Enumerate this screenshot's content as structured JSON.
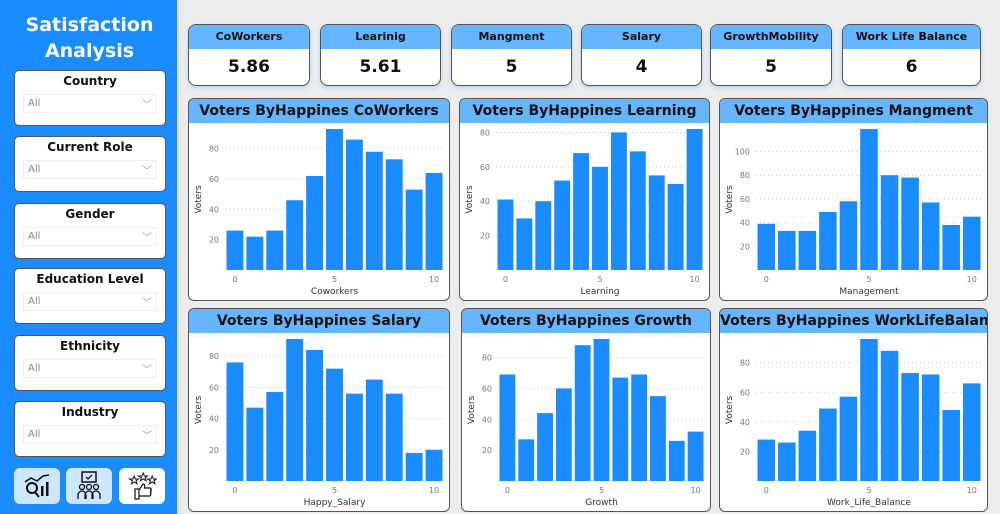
{
  "sidebar": {
    "title": "Satisfaction Analysis",
    "filters": [
      {
        "label": "Country",
        "value": "All"
      },
      {
        "label": "Current Role",
        "value": "All"
      },
      {
        "label": "Gender",
        "value": "All"
      },
      {
        "label": "Education Level",
        "value": "All"
      },
      {
        "label": "Ethnicity",
        "value": "All"
      },
      {
        "label": "Industry",
        "value": "All"
      }
    ],
    "nav_icons": [
      "analytics-search-icon",
      "presentation-audience-icon",
      "thumbs-up-stars-icon"
    ]
  },
  "kpis": [
    {
      "label": "CoWorkers",
      "value": "5.86"
    },
    {
      "label": "Learinig",
      "value": "5.61"
    },
    {
      "label": "Mangment",
      "value": "5"
    },
    {
      "label": "Salary",
      "value": "4"
    },
    {
      "label": "GrowthMobility",
      "value": "5"
    },
    {
      "label": "Work Life Balance",
      "value": "6"
    }
  ],
  "colors": {
    "bar": "#1a8cff",
    "header": "#66b5ff",
    "sidebar": "#1a8cff"
  },
  "chart_data": [
    {
      "type": "bar",
      "title": "Voters ByHappines CoWorkers",
      "xlabel": "Coworkers",
      "ylabel": "Voters",
      "x": [
        0,
        1,
        2,
        3,
        4,
        5,
        6,
        7,
        8,
        9,
        10
      ],
      "values": [
        26,
        22,
        26,
        46,
        62,
        93,
        86,
        78,
        73,
        53,
        64
      ],
      "xticks": [
        "0",
        "5",
        "10"
      ],
      "yticks": [
        "20",
        "40",
        "60",
        "80"
      ],
      "ylim": [
        0,
        93
      ],
      "grid": true
    },
    {
      "type": "bar",
      "title": "Voters ByHappines Learning",
      "xlabel": "Learning",
      "ylabel": "Voters",
      "x": [
        0,
        1,
        2,
        3,
        4,
        5,
        6,
        7,
        8,
        9,
        10
      ],
      "values": [
        41,
        30,
        40,
        52,
        68,
        60,
        80,
        69,
        55,
        50,
        82
      ],
      "xticks": [
        "0",
        "5",
        "10"
      ],
      "yticks": [
        "20",
        "40",
        "60",
        "80"
      ],
      "ylim": [
        0,
        82
      ],
      "grid": true
    },
    {
      "type": "bar",
      "title": "Voters ByHappines Mangment",
      "xlabel": "Management",
      "ylabel": "Voters",
      "x": [
        0,
        1,
        2,
        3,
        4,
        5,
        6,
        7,
        8,
        9,
        10
      ],
      "values": [
        39,
        33,
        33,
        49,
        58,
        119,
        80,
        78,
        57,
        38,
        45
      ],
      "xticks": [
        "0",
        "5",
        "10"
      ],
      "yticks": [
        "20",
        "40",
        "60",
        "80",
        "100"
      ],
      "ylim": [
        0,
        119
      ],
      "grid": true
    },
    {
      "type": "bar",
      "title": "Voters ByHappines Salary",
      "xlabel": "Happy_Salary",
      "ylabel": "Voters",
      "x": [
        0,
        1,
        2,
        3,
        4,
        5,
        6,
        7,
        8,
        9,
        10
      ],
      "values": [
        76,
        47,
        57,
        91,
        84,
        72,
        56,
        65,
        56,
        18,
        20
      ],
      "xticks": [
        "0",
        "5",
        "10"
      ],
      "yticks": [
        "20",
        "40",
        "60",
        "80"
      ],
      "ylim": [
        0,
        91
      ],
      "grid": true
    },
    {
      "type": "bar",
      "title": "Voters ByHappines Growth",
      "xlabel": "Growth",
      "ylabel": "Voters",
      "x": [
        0,
        1,
        2,
        3,
        4,
        5,
        6,
        7,
        8,
        9,
        10
      ],
      "values": [
        69,
        27,
        44,
        60,
        88,
        92,
        67,
        69,
        55,
        26,
        32
      ],
      "xticks": [
        "0",
        "5",
        "10"
      ],
      "yticks": [
        "20",
        "40",
        "60",
        "80"
      ],
      "ylim": [
        0,
        92
      ],
      "grid": true
    },
    {
      "type": "bar",
      "title": "Voters ByHappines WorkLifeBalance",
      "xlabel": "Work_Life_Balance",
      "ylabel": "Voters",
      "x": [
        0,
        1,
        2,
        3,
        4,
        5,
        6,
        7,
        8,
        9,
        10
      ],
      "values": [
        28,
        26,
        34,
        49,
        57,
        96,
        88,
        73,
        72,
        48,
        66
      ],
      "xticks": [
        "0",
        "5",
        "10"
      ],
      "yticks": [
        "20",
        "40",
        "60",
        "80"
      ],
      "ylim": [
        0,
        96
      ],
      "grid": true
    }
  ]
}
